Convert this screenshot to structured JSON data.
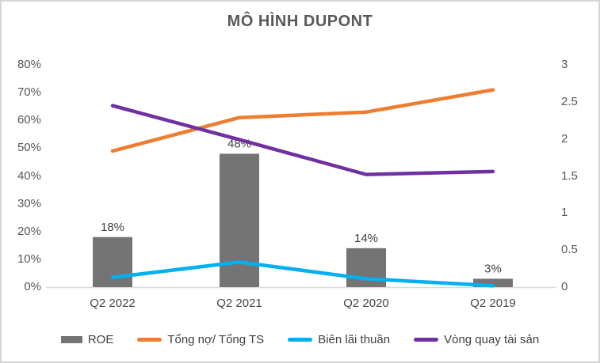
{
  "title": "MÔ HÌNH DUPONT",
  "chart_data": {
    "type": "combo-bar-line",
    "title": "MÔ HÌNH DUPONT",
    "categories": [
      "Q2 2022",
      "Q2 2021",
      "Q2 2020",
      "Q2 2019"
    ],
    "series": [
      {
        "name": "ROE",
        "type": "bar",
        "axis": "left",
        "color": "#747474",
        "values": [
          18,
          48,
          14,
          3
        ],
        "data_labels": [
          "18%",
          "48%",
          "14%",
          "3%"
        ]
      },
      {
        "name": "Tổng nợ/ Tổng TS",
        "type": "line",
        "axis": "left",
        "color": "#ED7D31",
        "values": [
          49,
          61,
          63,
          71
        ]
      },
      {
        "name": "Biên lãi thuần",
        "type": "line",
        "axis": "left",
        "color": "#00B0F0",
        "values": [
          3.5,
          9,
          3,
          0.5
        ]
      },
      {
        "name": "Vòng quay tài sản",
        "type": "line",
        "axis": "right",
        "color": "#7030A0",
        "values": [
          2.45,
          1.99,
          1.52,
          1.56
        ]
      }
    ],
    "left_axis": {
      "min": 0,
      "max": 80,
      "tick_step": 10,
      "tick_labels": [
        "0%",
        "10%",
        "20%",
        "30%",
        "40%",
        "50%",
        "60%",
        "70%",
        "80%"
      ]
    },
    "right_axis": {
      "min": 0,
      "max": 3,
      "tick_step": 0.5,
      "tick_labels": [
        "0",
        "0.5",
        "1",
        "1.5",
        "2",
        "2.5",
        "3"
      ]
    },
    "legend_position": "bottom",
    "grid": false
  },
  "colors": {
    "axis_line": "#D9D9D9",
    "tick_text": "#595959",
    "data_label_text": "#404040",
    "border": "#D6D6D6",
    "background": "#FFFFFF"
  }
}
